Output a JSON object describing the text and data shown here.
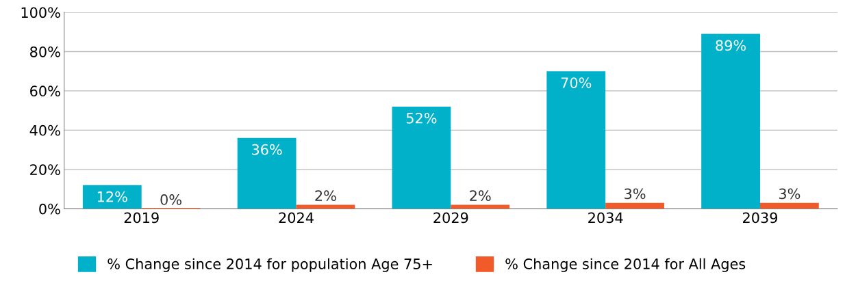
{
  "chart_data": {
    "type": "bar",
    "categories": [
      "2019",
      "2024",
      "2029",
      "2034",
      "2039"
    ],
    "series": [
      {
        "name": "% Change since 2014 for population Age 75+",
        "color": "#00b1c9",
        "values": [
          12,
          36,
          52,
          70,
          89
        ],
        "value_labels": [
          "12%",
          "36%",
          "52%",
          "70%",
          "89%"
        ]
      },
      {
        "name": "% Change since 2014 for All Ages",
        "color": "#f15a29",
        "values": [
          0,
          2,
          2,
          3,
          3
        ],
        "value_labels": [
          "0%",
          "2%",
          "2%",
          "3%",
          "3%"
        ]
      }
    ],
    "ylim": [
      0,
      100
    ],
    "yticks": [
      {
        "value": 0,
        "label": "0%"
      },
      {
        "value": 20,
        "label": "20%"
      },
      {
        "value": 40,
        "label": "40%"
      },
      {
        "value": 60,
        "label": "60%"
      },
      {
        "value": 80,
        "label": "80%"
      },
      {
        "value": 100,
        "label": "100%"
      }
    ],
    "grid": "y",
    "legend": "bottom"
  }
}
